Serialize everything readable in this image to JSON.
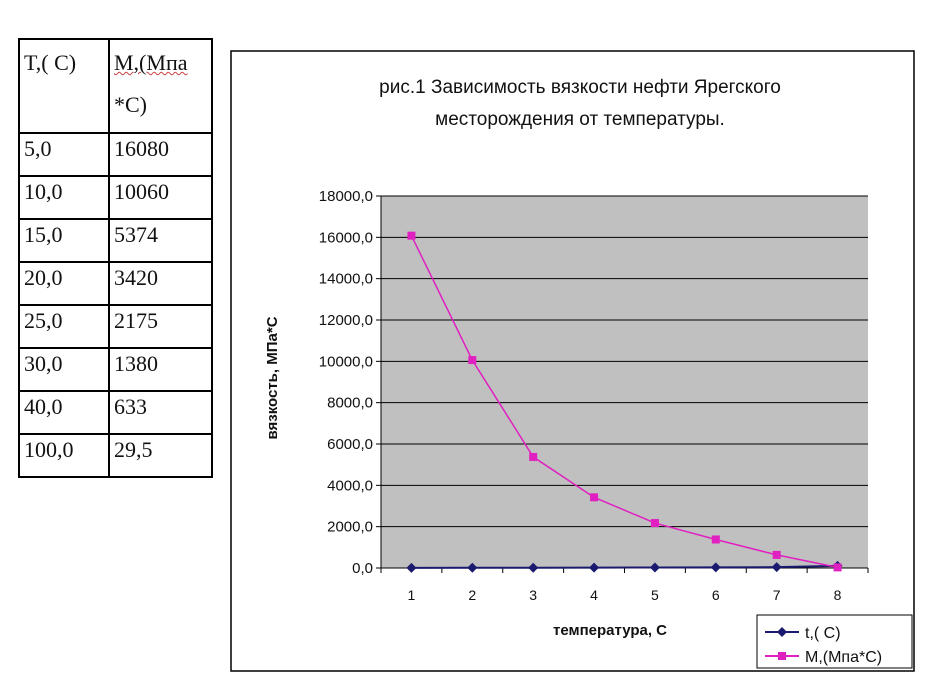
{
  "table": {
    "headers": [
      "T,( C)",
      "M,(Мпа",
      "*C)"
    ],
    "rows": [
      [
        "5,0",
        "16080"
      ],
      [
        "10,0",
        "10060"
      ],
      [
        "15,0",
        "5374"
      ],
      [
        "20,0",
        "3420"
      ],
      [
        "25,0",
        "2175"
      ],
      [
        "30,0",
        "1380"
      ],
      [
        "40,0",
        "633"
      ],
      [
        "100,0",
        "29,5"
      ]
    ]
  },
  "chart_data": {
    "type": "line",
    "title": [
      "рис.1 Зависимость вязкости нефти Ярегского",
      "месторождения от температуры."
    ],
    "xlabel": "температура, С",
    "ylabel": "вязкость, МПа*С",
    "categories": [
      "1",
      "2",
      "3",
      "4",
      "5",
      "6",
      "7",
      "8"
    ],
    "ylim": [
      0,
      18000
    ],
    "yticks": [
      "0,0",
      "2000,0",
      "4000,0",
      "6000,0",
      "8000,0",
      "10000,0",
      "12000,0",
      "14000,0",
      "16000,0",
      "18000,0"
    ],
    "grid": true,
    "legend_position": "bottom-right",
    "series": [
      {
        "name": "t,( C)",
        "color": "#1a1a6e",
        "marker": "diamond",
        "values": [
          5,
          10,
          15,
          20,
          25,
          30,
          40,
          100
        ]
      },
      {
        "name": "M,(Мпа*C)",
        "color": "#e020c0",
        "marker": "square",
        "values": [
          16080,
          10060,
          5374,
          3420,
          2175,
          1380,
          633,
          29.5
        ]
      }
    ],
    "plot_bg": "#c0c0c0"
  }
}
